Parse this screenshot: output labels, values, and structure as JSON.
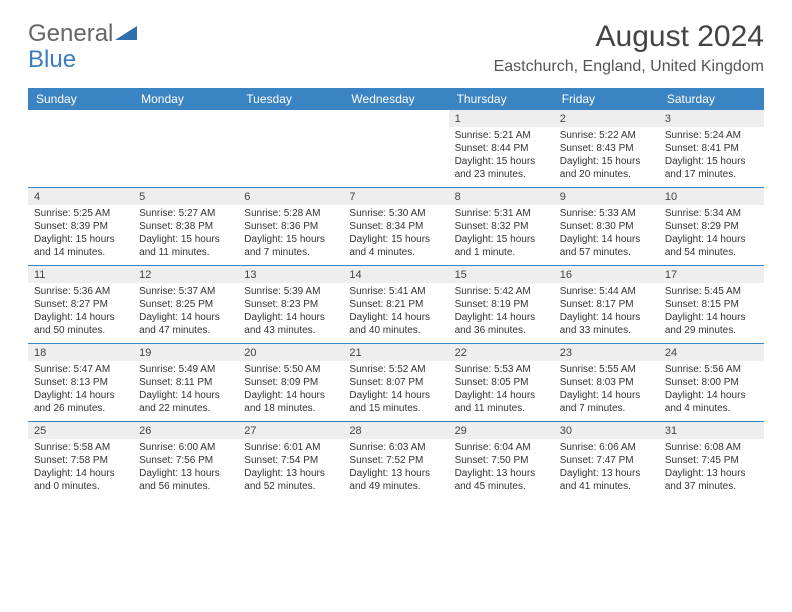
{
  "logo": {
    "part1": "General",
    "part2": "Blue",
    "triangle_color": "#2f6fab"
  },
  "title": "August 2024",
  "location": "Eastchurch, England, United Kingdom",
  "header_bg": "#3b84c4",
  "header_text": "#ffffff",
  "daynum_bg": "#eeeeee",
  "separator_color": "#3b84c4",
  "days": [
    "Sunday",
    "Monday",
    "Tuesday",
    "Wednesday",
    "Thursday",
    "Friday",
    "Saturday"
  ],
  "weeks": [
    {
      "nums": [
        "",
        "",
        "",
        "",
        "1",
        "2",
        "3"
      ],
      "cells": [
        null,
        null,
        null,
        null,
        {
          "sunrise": "Sunrise: 5:21 AM",
          "sunset": "Sunset: 8:44 PM",
          "d1": "Daylight: 15 hours",
          "d2": "and 23 minutes."
        },
        {
          "sunrise": "Sunrise: 5:22 AM",
          "sunset": "Sunset: 8:43 PM",
          "d1": "Daylight: 15 hours",
          "d2": "and 20 minutes."
        },
        {
          "sunrise": "Sunrise: 5:24 AM",
          "sunset": "Sunset: 8:41 PM",
          "d1": "Daylight: 15 hours",
          "d2": "and 17 minutes."
        }
      ]
    },
    {
      "nums": [
        "4",
        "5",
        "6",
        "7",
        "8",
        "9",
        "10"
      ],
      "cells": [
        {
          "sunrise": "Sunrise: 5:25 AM",
          "sunset": "Sunset: 8:39 PM",
          "d1": "Daylight: 15 hours",
          "d2": "and 14 minutes."
        },
        {
          "sunrise": "Sunrise: 5:27 AM",
          "sunset": "Sunset: 8:38 PM",
          "d1": "Daylight: 15 hours",
          "d2": "and 11 minutes."
        },
        {
          "sunrise": "Sunrise: 5:28 AM",
          "sunset": "Sunset: 8:36 PM",
          "d1": "Daylight: 15 hours",
          "d2": "and 7 minutes."
        },
        {
          "sunrise": "Sunrise: 5:30 AM",
          "sunset": "Sunset: 8:34 PM",
          "d1": "Daylight: 15 hours",
          "d2": "and 4 minutes."
        },
        {
          "sunrise": "Sunrise: 5:31 AM",
          "sunset": "Sunset: 8:32 PM",
          "d1": "Daylight: 15 hours",
          "d2": "and 1 minute."
        },
        {
          "sunrise": "Sunrise: 5:33 AM",
          "sunset": "Sunset: 8:30 PM",
          "d1": "Daylight: 14 hours",
          "d2": "and 57 minutes."
        },
        {
          "sunrise": "Sunrise: 5:34 AM",
          "sunset": "Sunset: 8:29 PM",
          "d1": "Daylight: 14 hours",
          "d2": "and 54 minutes."
        }
      ]
    },
    {
      "nums": [
        "11",
        "12",
        "13",
        "14",
        "15",
        "16",
        "17"
      ],
      "cells": [
        {
          "sunrise": "Sunrise: 5:36 AM",
          "sunset": "Sunset: 8:27 PM",
          "d1": "Daylight: 14 hours",
          "d2": "and 50 minutes."
        },
        {
          "sunrise": "Sunrise: 5:37 AM",
          "sunset": "Sunset: 8:25 PM",
          "d1": "Daylight: 14 hours",
          "d2": "and 47 minutes."
        },
        {
          "sunrise": "Sunrise: 5:39 AM",
          "sunset": "Sunset: 8:23 PM",
          "d1": "Daylight: 14 hours",
          "d2": "and 43 minutes."
        },
        {
          "sunrise": "Sunrise: 5:41 AM",
          "sunset": "Sunset: 8:21 PM",
          "d1": "Daylight: 14 hours",
          "d2": "and 40 minutes."
        },
        {
          "sunrise": "Sunrise: 5:42 AM",
          "sunset": "Sunset: 8:19 PM",
          "d1": "Daylight: 14 hours",
          "d2": "and 36 minutes."
        },
        {
          "sunrise": "Sunrise: 5:44 AM",
          "sunset": "Sunset: 8:17 PM",
          "d1": "Daylight: 14 hours",
          "d2": "and 33 minutes."
        },
        {
          "sunrise": "Sunrise: 5:45 AM",
          "sunset": "Sunset: 8:15 PM",
          "d1": "Daylight: 14 hours",
          "d2": "and 29 minutes."
        }
      ]
    },
    {
      "nums": [
        "18",
        "19",
        "20",
        "21",
        "22",
        "23",
        "24"
      ],
      "cells": [
        {
          "sunrise": "Sunrise: 5:47 AM",
          "sunset": "Sunset: 8:13 PM",
          "d1": "Daylight: 14 hours",
          "d2": "and 26 minutes."
        },
        {
          "sunrise": "Sunrise: 5:49 AM",
          "sunset": "Sunset: 8:11 PM",
          "d1": "Daylight: 14 hours",
          "d2": "and 22 minutes."
        },
        {
          "sunrise": "Sunrise: 5:50 AM",
          "sunset": "Sunset: 8:09 PM",
          "d1": "Daylight: 14 hours",
          "d2": "and 18 minutes."
        },
        {
          "sunrise": "Sunrise: 5:52 AM",
          "sunset": "Sunset: 8:07 PM",
          "d1": "Daylight: 14 hours",
          "d2": "and 15 minutes."
        },
        {
          "sunrise": "Sunrise: 5:53 AM",
          "sunset": "Sunset: 8:05 PM",
          "d1": "Daylight: 14 hours",
          "d2": "and 11 minutes."
        },
        {
          "sunrise": "Sunrise: 5:55 AM",
          "sunset": "Sunset: 8:03 PM",
          "d1": "Daylight: 14 hours",
          "d2": "and 7 minutes."
        },
        {
          "sunrise": "Sunrise: 5:56 AM",
          "sunset": "Sunset: 8:00 PM",
          "d1": "Daylight: 14 hours",
          "d2": "and 4 minutes."
        }
      ]
    },
    {
      "nums": [
        "25",
        "26",
        "27",
        "28",
        "29",
        "30",
        "31"
      ],
      "cells": [
        {
          "sunrise": "Sunrise: 5:58 AM",
          "sunset": "Sunset: 7:58 PM",
          "d1": "Daylight: 14 hours",
          "d2": "and 0 minutes."
        },
        {
          "sunrise": "Sunrise: 6:00 AM",
          "sunset": "Sunset: 7:56 PM",
          "d1": "Daylight: 13 hours",
          "d2": "and 56 minutes."
        },
        {
          "sunrise": "Sunrise: 6:01 AM",
          "sunset": "Sunset: 7:54 PM",
          "d1": "Daylight: 13 hours",
          "d2": "and 52 minutes."
        },
        {
          "sunrise": "Sunrise: 6:03 AM",
          "sunset": "Sunset: 7:52 PM",
          "d1": "Daylight: 13 hours",
          "d2": "and 49 minutes."
        },
        {
          "sunrise": "Sunrise: 6:04 AM",
          "sunset": "Sunset: 7:50 PM",
          "d1": "Daylight: 13 hours",
          "d2": "and 45 minutes."
        },
        {
          "sunrise": "Sunrise: 6:06 AM",
          "sunset": "Sunset: 7:47 PM",
          "d1": "Daylight: 13 hours",
          "d2": "and 41 minutes."
        },
        {
          "sunrise": "Sunrise: 6:08 AM",
          "sunset": "Sunset: 7:45 PM",
          "d1": "Daylight: 13 hours",
          "d2": "and 37 minutes."
        }
      ]
    }
  ]
}
